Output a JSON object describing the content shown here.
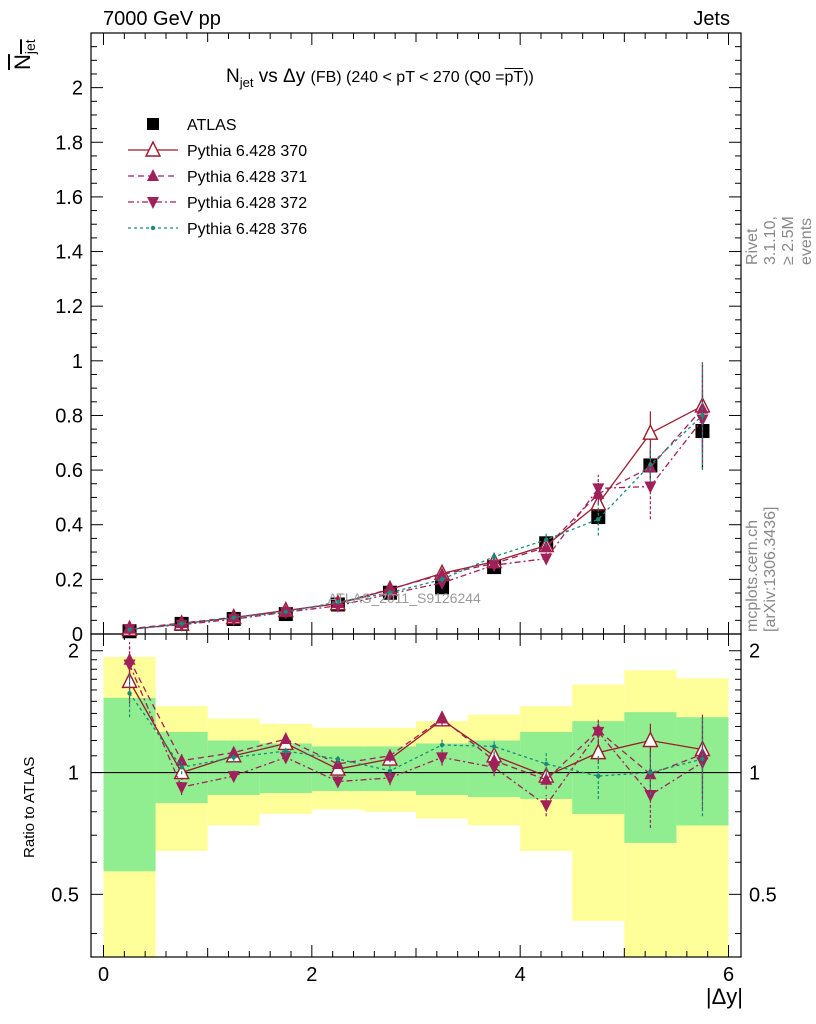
{
  "header": {
    "left": "7000 GeV pp",
    "right": "Jets"
  },
  "side_text": {
    "rivet": "Rivet 3.1.10, ≥ 2.5M events",
    "mcplots": "mcplots.cern.ch [arXiv:1306.3436]"
  },
  "watermark": "ATLAS_2011_S9126244",
  "title": {
    "n": "N",
    "n_sub": "jet",
    "mid": " vs Δy ",
    "fb": "(FB) (240 < pT < 270 (Q0 =",
    "pt": "pT",
    "close": "))"
  },
  "axis_labels": {
    "main_y": "N",
    "main_y_sub": "jet",
    "ratio_y": "Ratio to ATLAS",
    "x": "|Δy|"
  },
  "chart_data": [
    {
      "type": "scatter",
      "panel": "main",
      "xlim": [
        -0.12,
        6.12
      ],
      "ylim": [
        0,
        2.2
      ],
      "yticks": [
        "0",
        "0.2",
        "0.4",
        "0.6",
        "0.8",
        "1",
        "1.2",
        "1.4",
        "1.6",
        "1.8",
        "2"
      ],
      "ytick_values": [
        0,
        0.2,
        0.4,
        0.6,
        0.8,
        1,
        1.2,
        1.4,
        1.6,
        1.8,
        2
      ],
      "x": [
        0.25,
        0.75,
        1.25,
        1.75,
        2.25,
        2.75,
        3.25,
        3.75,
        4.25,
        4.75,
        5.25,
        5.75
      ],
      "series": [
        {
          "name": "ATLAS",
          "color": "#000000",
          "marker": "square",
          "values": [
            0.01,
            0.037,
            0.055,
            0.073,
            0.108,
            0.151,
            0.171,
            0.245,
            0.332,
            0.428,
            0.617,
            0.743
          ],
          "errors": [
            0.002,
            0.004,
            0.005,
            0.005,
            0.008,
            0.01,
            0.012,
            0.015,
            0.02,
            0.03,
            0.05,
            0.14
          ]
        },
        {
          "name": "Pythia 6.428 370",
          "color": "#9c1c2c",
          "marker": "triangle-up-open",
          "dash": "",
          "values": [
            0.017,
            0.037,
            0.06,
            0.086,
            0.111,
            0.163,
            0.222,
            0.265,
            0.324,
            0.477,
            0.735,
            0.835
          ],
          "errors": [
            0.002,
            0.003,
            0.004,
            0.005,
            0.007,
            0.01,
            0.012,
            0.015,
            0.02,
            0.03,
            0.08,
            0.16
          ]
        },
        {
          "name": "Pythia 6.428 371",
          "color": "#a0205a",
          "marker": "triangle-up",
          "dash": "6,4",
          "values": [
            0.019,
            0.04,
            0.061,
            0.083,
            0.113,
            0.164,
            0.218,
            0.258,
            0.318,
            0.513,
            0.61,
            0.825
          ],
          "errors": [
            0.002,
            0.003,
            0.004,
            0.005,
            0.007,
            0.01,
            0.012,
            0.015,
            0.02,
            0.04,
            0.08,
            0.16
          ]
        },
        {
          "name": "Pythia 6.428 372",
          "color": "#a0205a",
          "marker": "triangle-down",
          "dash": "6,3,2,3",
          "values": [
            0.018,
            0.034,
            0.054,
            0.08,
            0.103,
            0.147,
            0.187,
            0.252,
            0.276,
            0.533,
            0.54,
            0.785
          ],
          "errors": [
            0.002,
            0.003,
            0.004,
            0.005,
            0.007,
            0.01,
            0.012,
            0.015,
            0.02,
            0.05,
            0.12,
            0.16
          ]
        },
        {
          "name": "Pythia 6.428 376",
          "color": "#1a8a7a",
          "marker": "dot",
          "dash": "3,3",
          "values": [
            0.016,
            0.038,
            0.06,
            0.081,
            0.117,
            0.151,
            0.2,
            0.283,
            0.345,
            0.42,
            0.62,
            0.8
          ],
          "errors": [
            0.002,
            0.003,
            0.004,
            0.005,
            0.007,
            0.01,
            0.012,
            0.015,
            0.025,
            0.06,
            0.06,
            0.2
          ]
        }
      ],
      "legend_position": "top-left"
    },
    {
      "type": "scatter",
      "panel": "ratio",
      "xlim": [
        -0.12,
        6.12
      ],
      "ylim": [
        0.35,
        2.2
      ],
      "ytick_labels": [
        "0.5",
        "1",
        "2"
      ],
      "ytick_values": [
        0.5,
        1,
        2
      ],
      "xtick_labels": [
        "0",
        "2",
        "4",
        "6"
      ],
      "xtick_values": [
        0,
        2,
        4,
        6
      ],
      "x_edges": [
        0,
        0.5,
        1,
        1.5,
        2,
        2.5,
        3,
        3.5,
        4,
        4.5,
        5,
        5.5,
        6
      ],
      "band_stat": {
        "color": "#90ee90",
        "low": [
          0.57,
          0.84,
          0.88,
          0.89,
          0.9,
          0.9,
          0.88,
          0.87,
          0.86,
          0.79,
          0.67,
          0.74
        ],
        "high": [
          1.53,
          1.26,
          1.2,
          1.18,
          1.16,
          1.16,
          1.18,
          1.2,
          1.26,
          1.34,
          1.41,
          1.37
        ]
      },
      "band_total": {
        "color": "#ffff99",
        "low": [
          0.35,
          0.64,
          0.74,
          0.79,
          0.81,
          0.8,
          0.77,
          0.74,
          0.64,
          0.43,
          0.35,
          0.35
        ],
        "high": [
          1.93,
          1.46,
          1.36,
          1.32,
          1.29,
          1.29,
          1.34,
          1.39,
          1.46,
          1.65,
          1.79,
          1.71
        ]
      },
      "x": [
        0.25,
        0.75,
        1.25,
        1.75,
        2.25,
        2.75,
        3.25,
        3.75,
        4.25,
        4.75,
        5.25,
        5.75
      ],
      "series": [
        {
          "name": "Pythia 6.428 370",
          "color": "#9c1c2c",
          "marker": "triangle-up-open",
          "dash": "",
          "values": [
            1.68,
            1.0,
            1.1,
            1.18,
            1.02,
            1.08,
            1.35,
            1.1,
            0.98,
            1.12,
            1.2,
            1.14
          ],
          "errors": [
            0.2,
            0.04,
            0.03,
            0.03,
            0.03,
            0.04,
            0.05,
            0.05,
            0.05,
            0.07,
            0.12,
            0.25
          ]
        },
        {
          "name": "Pythia 6.428 371",
          "color": "#a0205a",
          "marker": "triangle-up",
          "dash": "6,4",
          "values": [
            1.9,
            1.07,
            1.12,
            1.21,
            1.05,
            1.1,
            1.36,
            1.07,
            0.96,
            1.27,
            0.99,
            1.11
          ],
          "errors": [
            0.2,
            0.04,
            0.03,
            0.03,
            0.03,
            0.04,
            0.05,
            0.05,
            0.05,
            0.08,
            0.12,
            0.25
          ]
        },
        {
          "name": "Pythia 6.428 372",
          "color": "#a0205a",
          "marker": "triangle-down",
          "dash": "6,3,2,3",
          "values": [
            1.85,
            0.92,
            0.98,
            1.09,
            0.95,
            0.97,
            1.09,
            1.03,
            0.83,
            1.26,
            0.88,
            1.06
          ],
          "errors": [
            0.2,
            0.04,
            0.03,
            0.03,
            0.03,
            0.04,
            0.05,
            0.05,
            0.05,
            0.08,
            0.15,
            0.25
          ]
        },
        {
          "name": "Pythia 6.428 376",
          "color": "#1a8a7a",
          "marker": "dot",
          "dash": "3,3",
          "values": [
            1.57,
            1.03,
            1.09,
            1.13,
            1.08,
            1.01,
            1.17,
            1.16,
            1.05,
            0.98,
            1.0,
            1.08
          ],
          "errors": [
            0.2,
            0.04,
            0.03,
            0.03,
            0.03,
            0.04,
            0.05,
            0.05,
            0.07,
            0.12,
            0.12,
            0.3
          ]
        }
      ]
    }
  ]
}
